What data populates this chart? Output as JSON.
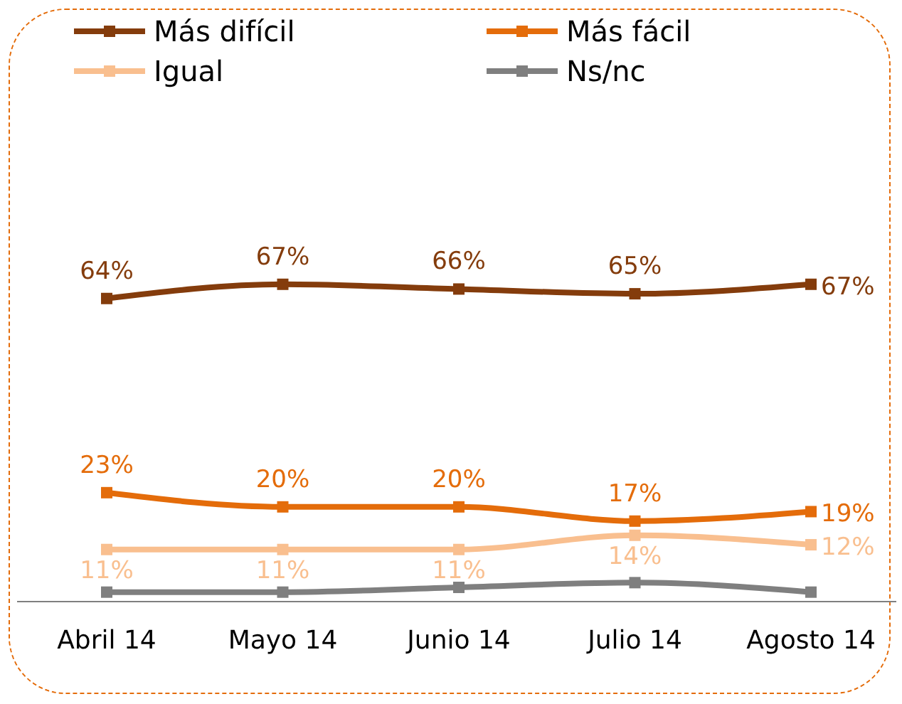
{
  "chart_data": {
    "type": "line",
    "categories": [
      "Abril 14",
      "Mayo 14",
      "Junio 14",
      "Julio 14",
      "Agosto 14"
    ],
    "series": [
      {
        "name": "Más difícil",
        "color": "#843c0c",
        "values": [
          64,
          67,
          66,
          65,
          67
        ],
        "value_labels": [
          "64%",
          "67%",
          "66%",
          "65%",
          "67%"
        ]
      },
      {
        "name": "Más fácil",
        "color": "#e46c0a",
        "values": [
          23,
          20,
          20,
          17,
          19
        ],
        "value_labels": [
          "23%",
          "20%",
          "20%",
          "17%",
          "19%"
        ]
      },
      {
        "name": "Igual",
        "color": "#f9bf8f",
        "values": [
          11,
          11,
          11,
          14,
          12
        ],
        "value_labels": [
          "11%",
          "11%",
          "11%",
          "14%",
          "12%"
        ]
      },
      {
        "name": "Ns/nc",
        "color": "#7f7f7f",
        "values": [
          2,
          2,
          3,
          4,
          2
        ]
      }
    ],
    "legend": "top",
    "marker": "square",
    "grid": false,
    "line_style": "solid"
  }
}
